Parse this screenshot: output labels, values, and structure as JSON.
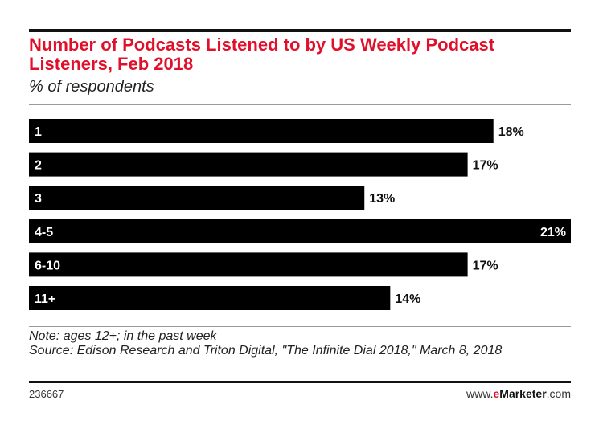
{
  "chart_data": {
    "type": "bar",
    "orientation": "horizontal",
    "title": "Number of Podcasts Listened to by US Weekly Podcast Listeners, Feb 2018",
    "subtitle": "% of respondents",
    "categories": [
      "1",
      "2",
      "3",
      "4-5",
      "6-10",
      "11+"
    ],
    "values": [
      18,
      17,
      13,
      21,
      17,
      14
    ],
    "value_labels": [
      "18%",
      "17%",
      "13%",
      "21%",
      "17%",
      "14%"
    ],
    "xlim": [
      0,
      21
    ],
    "grid": false,
    "legend": "none",
    "bar_color": "#000000"
  },
  "notes": {
    "note": "Note: ages 12+; in the past week",
    "source": "Source: Edison Research and Triton Digital, \"The Infinite Dial 2018,\" March 8, 2018"
  },
  "footer": {
    "chart_id": "236667",
    "brand_prefix": "www.",
    "brand_e": "e",
    "brand_name": "Marketer",
    "brand_suffix": ".com"
  },
  "colors": {
    "title": "#e0102b",
    "bar": "#000000"
  }
}
